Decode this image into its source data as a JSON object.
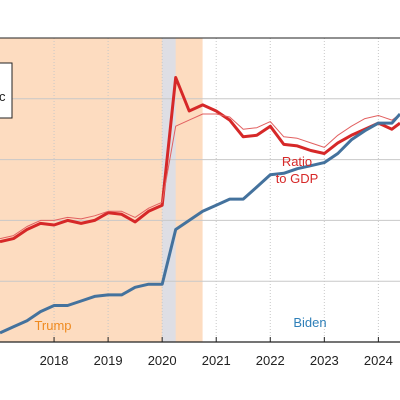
{
  "chart_data": {
    "type": "line",
    "legend_fragment": "c",
    "x_ticks": [
      "2018",
      "2019",
      "2020",
      "2021",
      "2022",
      "2023",
      "2024"
    ],
    "x_range": [
      2017.0,
      2024.4
    ],
    "y_range": [
      0,
      100
    ],
    "grid": true,
    "shaded_periods": [
      {
        "name": "Trump",
        "start": 2016.9,
        "end": 2020.75,
        "color": "#fddcc0",
        "label_color": "#ef8a1f"
      },
      {
        "name": "Biden",
        "start": 2020.75,
        "end": 2024.4,
        "color": "#ffffff",
        "label_color": "#2e7fb8"
      }
    ],
    "recession": {
      "start": 2020.0,
      "end": 2020.25,
      "color": "#dedee4"
    },
    "annotations": [
      {
        "text": "Ratio",
        "color": "#d62828"
      },
      {
        "text": "to GDP",
        "color": "#d62828"
      }
    ],
    "series": [
      {
        "color": "#d62828",
        "width": 3,
        "x": [
          2017.0,
          2017.25,
          2017.5,
          2017.75,
          2018.0,
          2018.25,
          2018.5,
          2018.75,
          2019.0,
          2019.25,
          2019.5,
          2019.75,
          2020.0,
          2020.25,
          2020.5,
          2020.75,
          2021.0,
          2021.25,
          2021.5,
          2021.75,
          2022.0,
          2022.25,
          2022.5,
          2022.75,
          2023.0,
          2023.25,
          2023.5,
          2023.75,
          2024.0,
          2024.25,
          2024.4
        ],
        "values": [
          33,
          34,
          37,
          39,
          38.5,
          40,
          39,
          40,
          42.5,
          42,
          39.5,
          43,
          45,
          87,
          76,
          78,
          76,
          73,
          67.5,
          68,
          71,
          65,
          64.5,
          63,
          62,
          65.5,
          68,
          70,
          72,
          70,
          72
        ]
      },
      {
        "color": "#e26060",
        "width": 1,
        "x": [
          2017.0,
          2017.25,
          2017.5,
          2017.75,
          2018.0,
          2018.25,
          2018.5,
          2018.75,
          2019.0,
          2019.25,
          2019.5,
          2019.75,
          2020.0,
          2020.25,
          2020.5,
          2020.75,
          2021.0,
          2021.25,
          2021.5,
          2021.75,
          2022.0,
          2022.25,
          2022.5,
          2022.75,
          2023.0,
          2023.25,
          2023.5,
          2023.75,
          2024.0,
          2024.25,
          2024.4
        ],
        "values": [
          34,
          35,
          38,
          40,
          40,
          41,
          40.5,
          41.5,
          43,
          43,
          41,
          44,
          46,
          71,
          73,
          75,
          75,
          74,
          70,
          70.5,
          72.5,
          67.5,
          67,
          65.5,
          64,
          68,
          71,
          73.5,
          74.5,
          73,
          75
        ]
      },
      {
        "color": "#44729d",
        "width": 3,
        "x": [
          2017.0,
          2017.25,
          2017.5,
          2017.75,
          2018.0,
          2018.25,
          2018.5,
          2018.75,
          2019.0,
          2019.25,
          2019.5,
          2019.75,
          2020.0,
          2020.25,
          2020.5,
          2020.75,
          2021.0,
          2021.25,
          2021.5,
          2021.75,
          2022.0,
          2022.25,
          2022.5,
          2022.75,
          2023.0,
          2023.25,
          2023.5,
          2023.75,
          2024.0,
          2024.25,
          2024.4
        ],
        "values": [
          3,
          5,
          7,
          10,
          12,
          12,
          13.5,
          15,
          15.5,
          15.5,
          18,
          19,
          19,
          37,
          40,
          43,
          45,
          47,
          47,
          51,
          55,
          55.5,
          57,
          58,
          59,
          62,
          66.5,
          69.5,
          72,
          72,
          75
        ]
      }
    ]
  }
}
